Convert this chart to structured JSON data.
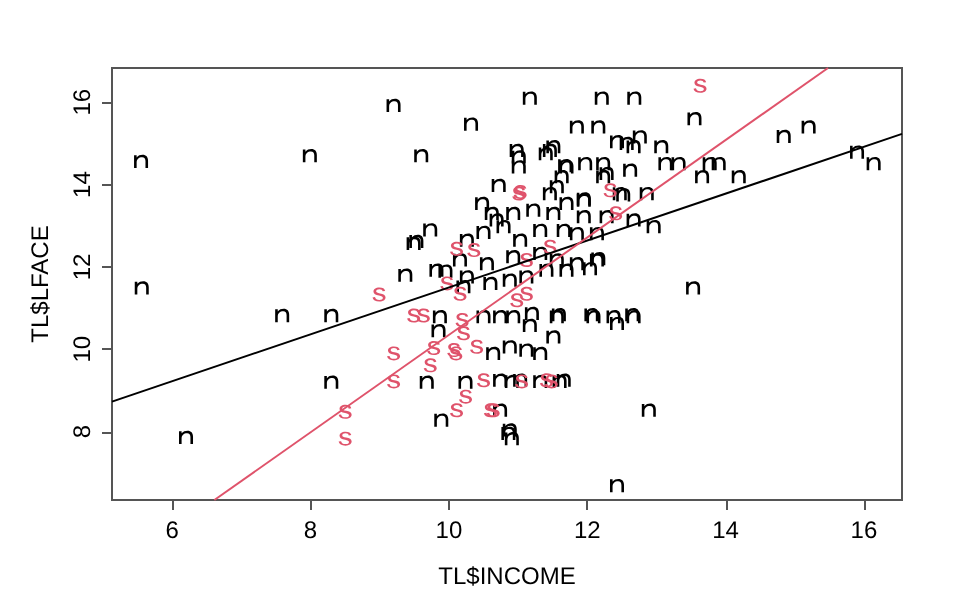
{
  "chart_data": {
    "type": "scatter",
    "xlabel": "TL$INCOME",
    "ylabel": "TL$LFACE",
    "xlim": [
      5.13,
      16.55
    ],
    "xticks": [
      6,
      8,
      10,
      12,
      14,
      16
    ],
    "ylim": [
      6.34,
      16.83
    ],
    "yticks": [
      8,
      10,
      12,
      14,
      16
    ],
    "grid": false,
    "series": [
      {
        "color": "#000000",
        "x": [
          5.55,
          7.99,
          9.6,
          9.2,
          10.32,
          5.56,
          9.53,
          9.73,
          9.37,
          9.95,
          11.17,
          12.21,
          12.68,
          13.55,
          14.84,
          15.2,
          15.9,
          16.14,
          11.85,
          12.16,
          12.43,
          12.76,
          12.67,
          13.07,
          11.51,
          11.01,
          11.4,
          11.68,
          11.97,
          12.23,
          12.62,
          13.13,
          13.32,
          13.77,
          13.9,
          14.19,
          13.66,
          11.63,
          12.23,
          12.47,
          12.86,
          10.72,
          11.46,
          11.7,
          11.95,
          12.67,
          12.96,
          12.16,
          12.04,
          13.53,
          7.59,
          8.3,
          6.2,
          8.3,
          9.68,
          10.24,
          9.89,
          9.85,
          12.43,
          12.89,
          10.86,
          10.91,
          11.59,
          12.06,
          12.43,
          12.65,
          11.17,
          10.74,
          10.91,
          11.32,
          11.6,
          10.48,
          10.62,
          10.98,
          11.01,
          11.46,
          11.7,
          11.56,
          11.95,
          12.28,
          12.52,
          12.57,
          10.69,
          10.93,
          11.22,
          11.51,
          11.95,
          12.28,
          10.26,
          10.5,
          10.79,
          11.03,
          11.32,
          11.66,
          11.85,
          12.14,
          9.49,
          10.16,
          10.55,
          10.93,
          11.32,
          11.56,
          11.85,
          12.14,
          9.82,
          10.26,
          10.6,
          10.88,
          11.12,
          11.41,
          11.7,
          10.21,
          9.87,
          10.5,
          10.74,
          10.93,
          11.2,
          11.56,
          12.09,
          12.38,
          12.67,
          10.64,
          10.88,
          11.12,
          11.51,
          11.32,
          10.74,
          11.03,
          11.66,
          10.88
        ],
        "values": [
          14.56,
          14.7,
          14.7,
          15.92,
          15.47,
          11.49,
          12.62,
          12.9,
          11.8,
          11.9,
          16.1,
          16.1,
          16.1,
          15.6,
          15.17,
          15.4,
          14.79,
          14.51,
          15.4,
          15.4,
          15.04,
          15.16,
          14.92,
          14.92,
          14.92,
          14.67,
          14.75,
          14.46,
          14.51,
          14.51,
          14.35,
          14.51,
          14.51,
          14.51,
          14.51,
          14.19,
          14.19,
          14.19,
          14.19,
          13.78,
          13.78,
          13.98,
          13.78,
          13.54,
          13.62,
          13.14,
          12.98,
          12.2,
          11.96,
          11.49,
          10.82,
          10.82,
          7.86,
          9.2,
          9.2,
          9.2,
          8.28,
          10.45,
          6.69,
          8.52,
          7.96,
          7.83,
          10.84,
          10.84,
          10.63,
          10.84,
          10.58,
          8.52,
          9.22,
          9.22,
          9.22,
          13.54,
          13.3,
          14.83,
          14.43,
          14.83,
          14.43,
          13.95,
          13.65,
          14.27,
          13.75,
          15.0,
          13.14,
          13.3,
          13.38,
          13.3,
          13.22,
          13.22,
          12.65,
          12.84,
          12.98,
          12.65,
          12.89,
          12.89,
          12.81,
          12.81,
          12.57,
          12.17,
          12.08,
          12.25,
          12.33,
          12.17,
          12.08,
          12.17,
          11.92,
          11.76,
          11.6,
          11.68,
          11.76,
          11.92,
          11.92,
          11.52,
          10.79,
          10.79,
          10.79,
          10.79,
          10.87,
          10.79,
          10.79,
          10.79,
          10.79,
          9.9,
          10.06,
          9.98,
          10.3,
          9.9,
          9.25,
          9.25,
          9.25,
          8.04
        ]
      },
      {
        "color": "#df536b",
        "x": [
          13.63,
          12.33,
          11.01,
          12.41,
          8.5,
          8.5,
          9.2,
          9.2,
          9.78,
          9.73,
          10.11,
          10.24,
          9.49,
          9.63,
          10.1,
          10.64,
          11.48,
          11.05,
          8.99,
          11.03,
          11.46,
          10.11,
          10.36,
          11.12,
          9.97,
          10.16,
          10.98,
          11.12,
          10.19,
          10.21,
          10.4,
          10.07,
          10.5,
          11.41,
          10.6
        ],
        "values": [
          16.4,
          13.86,
          13.78,
          13.3,
          8.48,
          7.83,
          9.22,
          9.9,
          10.03,
          9.61,
          8.52,
          8.85,
          10.82,
          10.82,
          9.9,
          8.52,
          9.22,
          9.22,
          11.33,
          13.82,
          12.49,
          12.44,
          12.41,
          12.17,
          11.6,
          11.35,
          11.19,
          11.35,
          10.71,
          10.39,
          10.06,
          9.98,
          9.25,
          9.25,
          8.52
        ]
      },
      {
        "type": "line",
        "color": "#000000",
        "x": [
          5.13,
          16.55
        ],
        "values": [
          8.73,
          15.23
        ]
      },
      {
        "type": "line",
        "color": "#df536b",
        "x": [
          6.61,
          15.48
        ],
        "values": [
          6.34,
          16.83
        ]
      }
    ]
  }
}
